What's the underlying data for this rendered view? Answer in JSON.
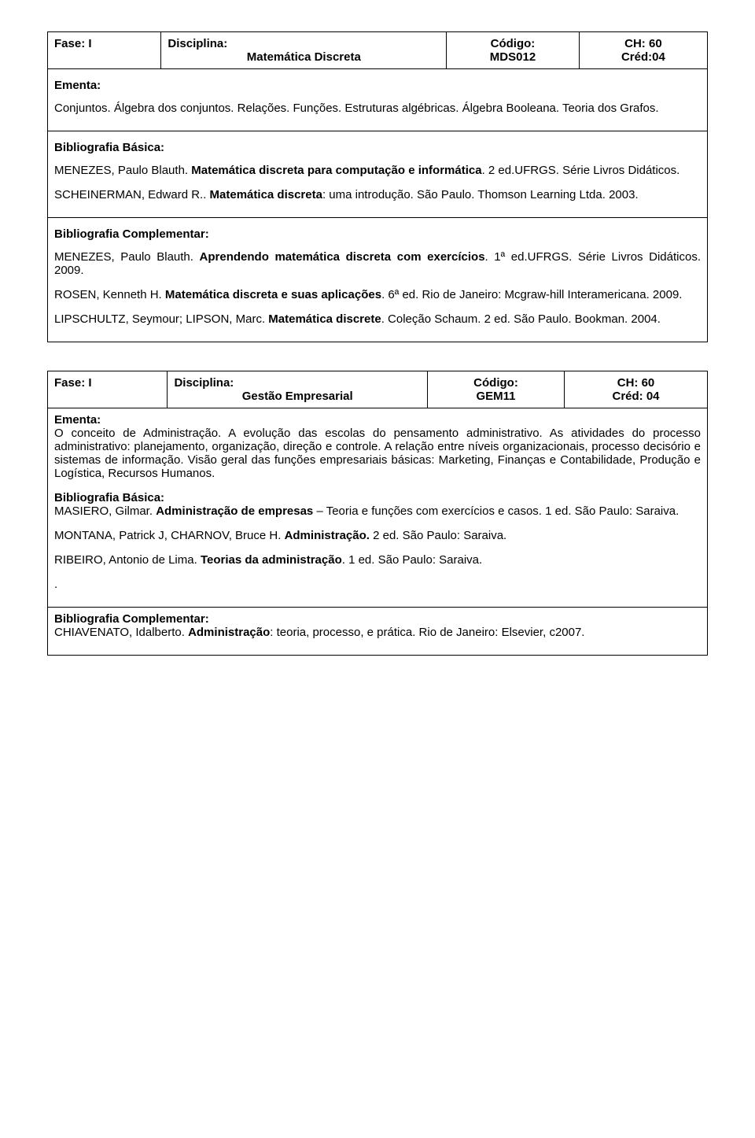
{
  "labels": {
    "fase": "Fase: I",
    "disciplina": "Disciplina:",
    "codigo": "Código:",
    "ch": "CH:",
    "cred": "Créd:",
    "ementa": "Ementa:",
    "bib_basica": "Bibliografia Básica:",
    "bib_complementar": "Bibliografia Complementar:"
  },
  "course1": {
    "name": "Matemática Discreta",
    "code": "MDS012",
    "ch": "60",
    "cred": "04",
    "ementa": "Conjuntos. Álgebra dos conjuntos. Relações. Funções. Estruturas algébricas. Álgebra Booleana. Teoria dos Grafos.",
    "basica": {
      "ref1_a": "MENEZES, Paulo Blauth. ",
      "ref1_b": "Matemática discreta para computação e informática",
      "ref1_c": ". 2 ed.UFRGS. Série Livros Didáticos.",
      "ref2_a": "SCHEINERMAN, Edward R.. ",
      "ref2_b": "Matemática discreta",
      "ref2_c": ": uma introdução. São Paulo. Thomson Learning Ltda. 2003."
    },
    "compl": {
      "ref1_a": "MENEZES, Paulo Blauth. ",
      "ref1_b": "Aprendendo matemática discreta com exercícios",
      "ref1_c": ". 1ª ed.UFRGS. Série Livros Didáticos. 2009.",
      "ref2_a": "ROSEN, Kenneth H. ",
      "ref2_b": "Matemática discreta e suas aplicações",
      "ref2_c": ". 6ª ed. Rio de Janeiro: Mcgraw-hill Interamericana. 2009.",
      "ref3_a": "LIPSCHULTZ, Seymour; LIPSON, Marc. ",
      "ref3_b": "Matemática discrete",
      "ref3_c": ". Coleção Schaum. 2 ed. São Paulo. Bookman. 2004."
    }
  },
  "course2": {
    "name": "Gestão Empresarial",
    "code": "GEM11",
    "ch": "60",
    "cred": "04",
    "cred_label": "Créd: 04",
    "ementa": "O conceito de Administração. A evolução das escolas do pensamento administrativo. As atividades do processo administrativo: planejamento, organização, direção e controle. A relação entre níveis organizacionais, processo decisório e sistemas de informação. Visão geral das funções empresariais básicas: Marketing, Finanças e Contabilidade, Produção e Logística, Recursos Humanos.",
    "basica": {
      "ref1_a": "MASIERO, Gilmar. ",
      "ref1_b": "Administração de empresas",
      "ref1_c": " – Teoria e funções com exercícios e casos. 1 ed. São Paulo: Saraiva.",
      "ref2_a": "MONTANA, Patrick J, CHARNOV, Bruce H. ",
      "ref2_b": "Administração.",
      "ref2_c": " 2 ed. São Paulo: Saraiva.",
      "ref3_a": "RIBEIRO, Antonio de Lima. ",
      "ref3_b": "Teorias da administração",
      "ref3_c": ". 1 ed. São Paulo: Saraiva."
    },
    "compl": {
      "ref1_a": "CHIAVENATO, Idalberto. ",
      "ref1_b": "Administração",
      "ref1_c": ": teoria, processo, e prática. Rio de Janeiro: Elsevier, c2007."
    }
  }
}
